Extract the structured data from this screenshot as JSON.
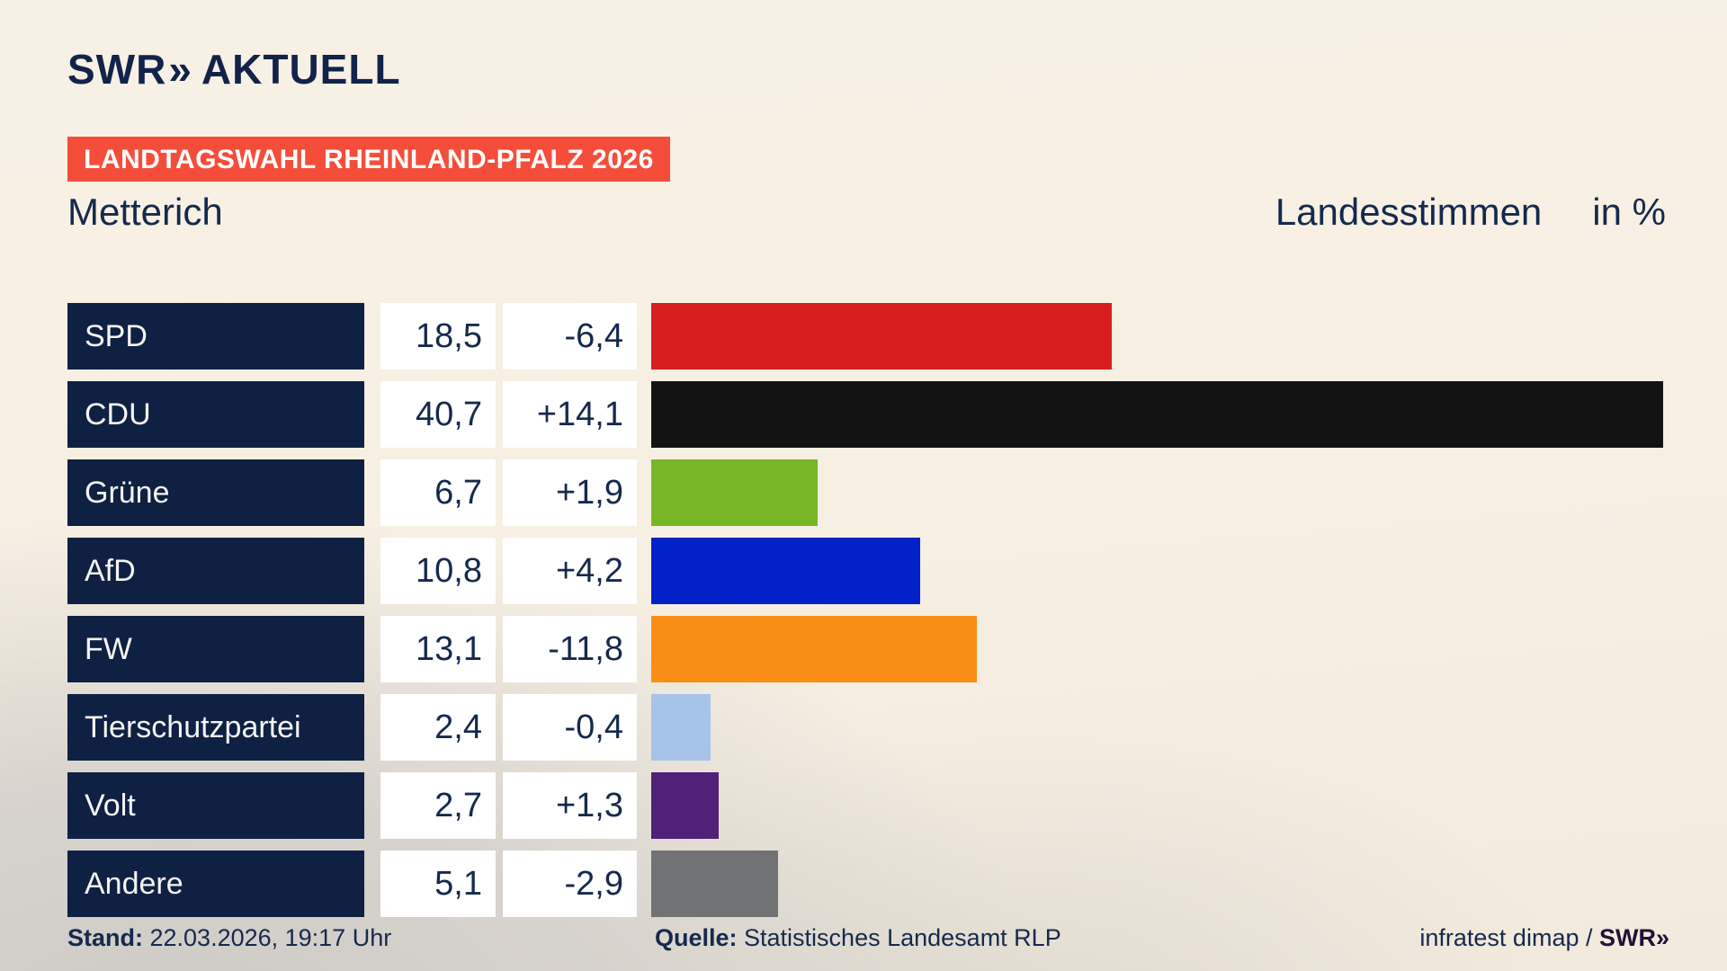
{
  "header": {
    "logo_swr": "SWR",
    "logo_chevrons": "»",
    "logo_aktuell": "AKTUELL",
    "banner": "LANDTAGSWAHL RHEINLAND-PFALZ 2026",
    "region_title": "Metterich",
    "vote_type_title": "Landesstimmen",
    "unit_title": "in %"
  },
  "chart_data": {
    "type": "bar",
    "title": "Landtagswahl Rheinland-Pfalz 2026 – Metterich – Landesstimmen in %",
    "categories": [
      "SPD",
      "CDU",
      "Grüne",
      "AfD",
      "FW",
      "Tierschutzpartei",
      "Volt",
      "Andere"
    ],
    "values": [
      18.5,
      40.7,
      6.7,
      10.8,
      13.1,
      2.4,
      2.7,
      5.1
    ],
    "deltas": [
      -6.4,
      14.1,
      1.9,
      4.2,
      -11.8,
      -0.4,
      1.3,
      -2.9
    ],
    "value_labels": [
      "18,5",
      "40,7",
      "6,7",
      "10,8",
      "13,1",
      "2,4",
      "2,7",
      "5,1"
    ],
    "delta_labels": [
      "-6,4",
      "+14,1",
      "+1,9",
      "+4,2",
      "-11,8",
      "-0,4",
      "+1,3",
      "-2,9"
    ],
    "colors": [
      "#d71f1f",
      "#131313",
      "#77b725",
      "#0222c9",
      "#fa8d15",
      "#a6c4ea",
      "#4f2178",
      "#707274"
    ],
    "xlabel": "",
    "ylabel": "",
    "unit": "%",
    "xlim": [
      0,
      43.3
    ],
    "grid": false,
    "legend": "none",
    "orientation": "horizontal"
  },
  "footer": {
    "stand_label": "Stand:",
    "stand_value": " 22.03.2026, 19:17 Uhr",
    "quelle_label": "Quelle:",
    "quelle_value": " Statistisches Landesamt RLP",
    "credit_text": "infratest dimap / ",
    "credit_logo": "SWR»"
  },
  "theme_colors": {
    "background_cream": "#f7f0e3",
    "background_gray": "#cdcac6",
    "navy_box": "#0e2143",
    "text_navy": "#15294d",
    "banner_red": "#f44e3b",
    "box_white": "#ffffff",
    "credit_purple": "#211038"
  }
}
